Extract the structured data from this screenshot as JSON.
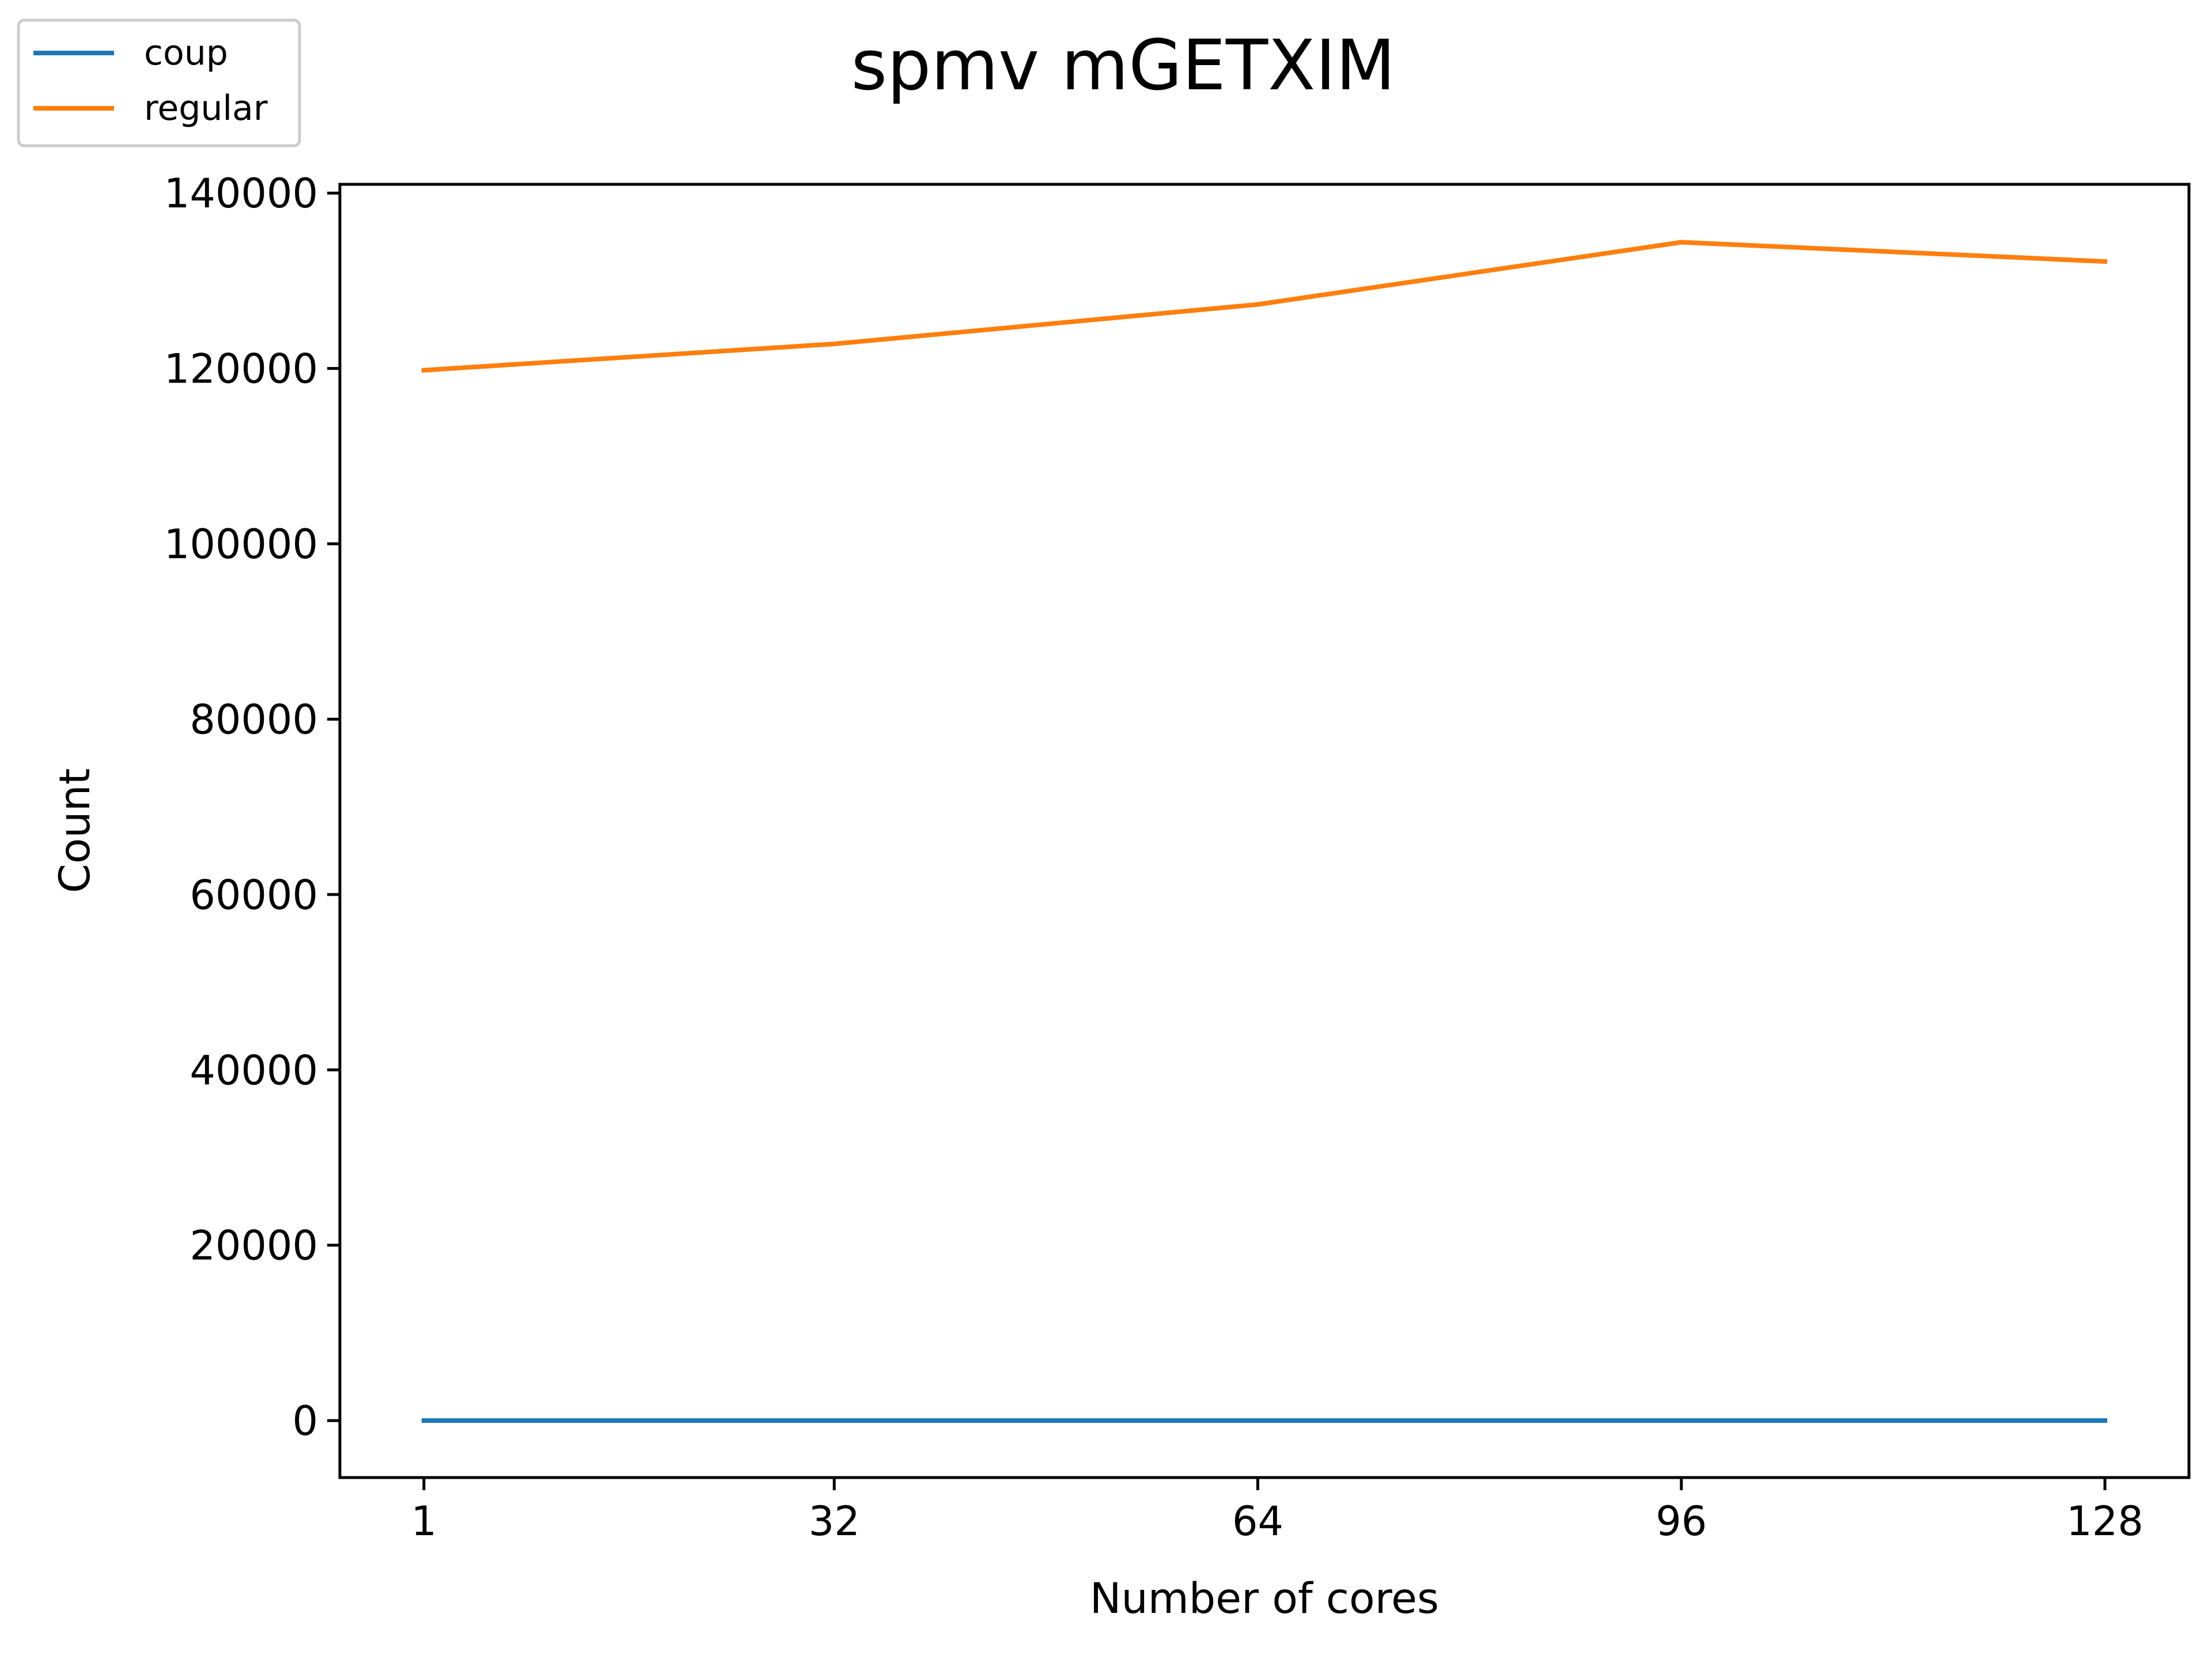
{
  "chart_data": {
    "type": "line",
    "title": "spmv mGETXIM",
    "xlabel": "Number of cores",
    "ylabel": "Count",
    "x": [
      1,
      32,
      64,
      96,
      128
    ],
    "xticks": [
      "1",
      "32",
      "64",
      "96",
      "128"
    ],
    "yticks": [
      "0",
      "20000",
      "40000",
      "60000",
      "80000",
      "100000",
      "120000",
      "140000"
    ],
    "ylim": [
      -6500,
      141000
    ],
    "xlim": [
      -5.35,
      134.35
    ],
    "grid": false,
    "legend_position": "top-left",
    "series": [
      {
        "name": "coup",
        "color": "#1f77b4",
        "values": [
          0,
          0,
          0,
          0,
          0
        ]
      },
      {
        "name": "regular",
        "color": "#ff7f0e",
        "values": [
          119800,
          122800,
          127300,
          134400,
          132200
        ]
      }
    ]
  }
}
